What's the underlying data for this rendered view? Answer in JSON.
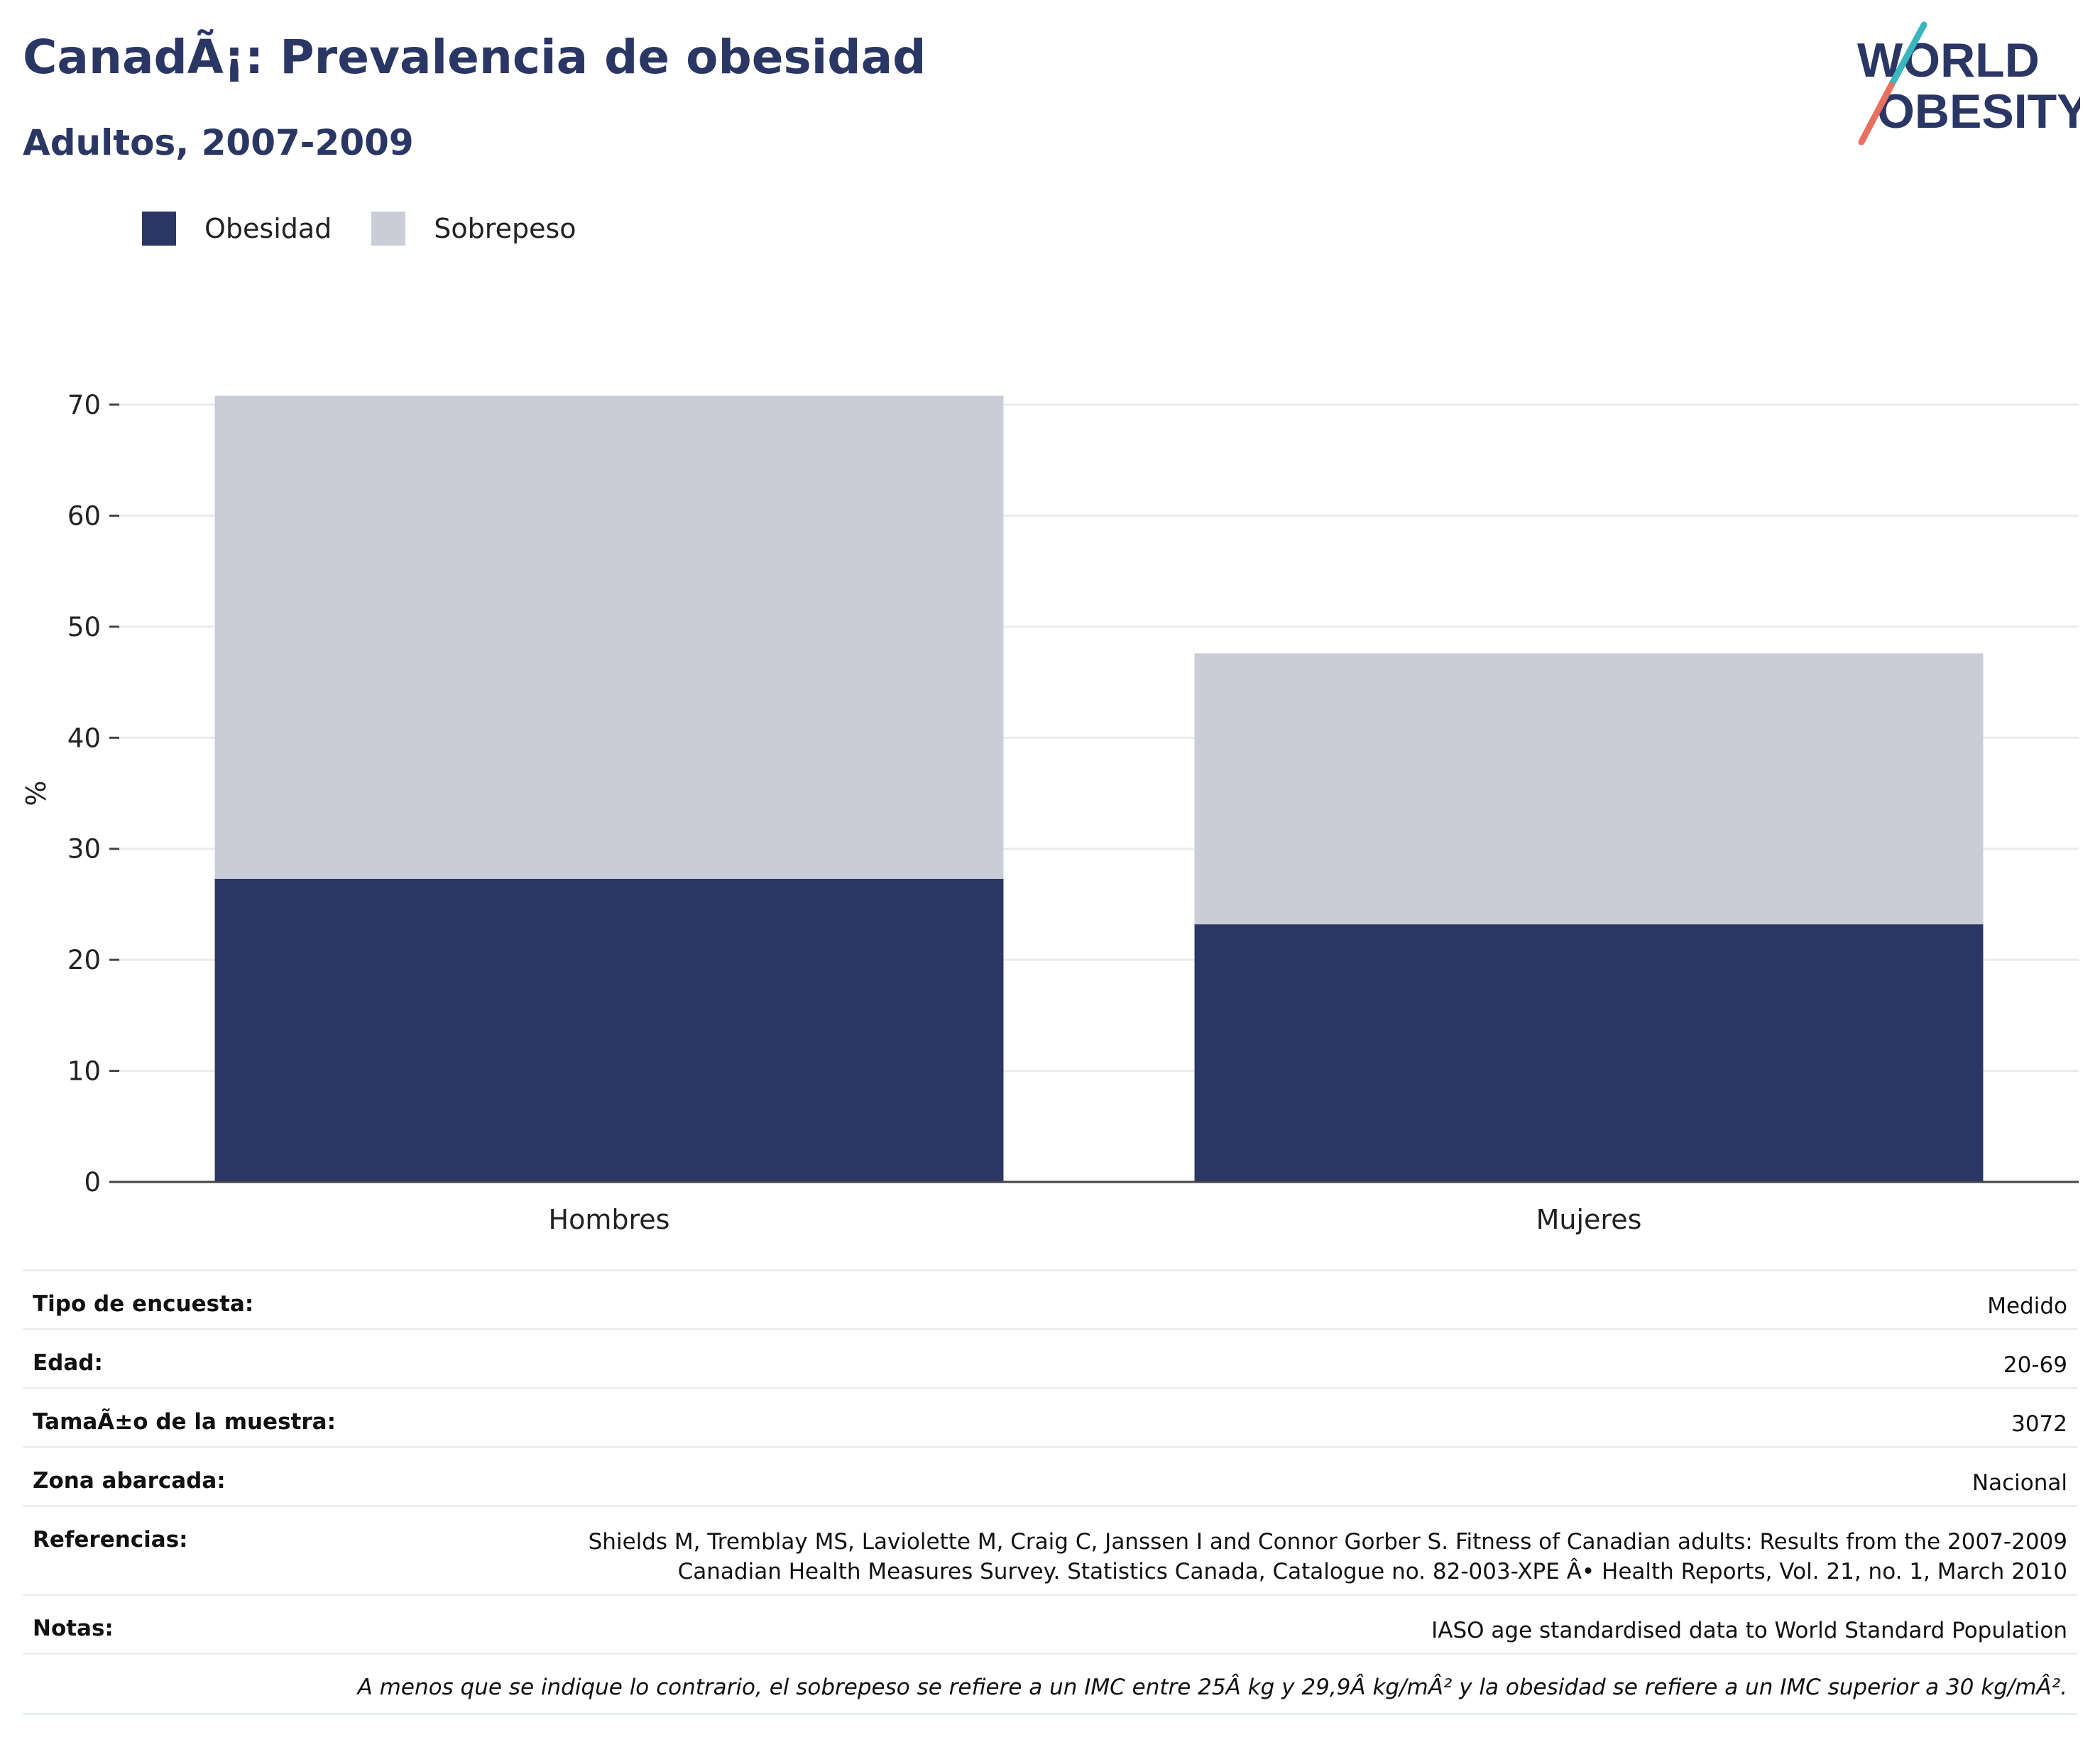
{
  "header": {
    "title": "CanadÃ¡: Prevalencia de obesidad",
    "subtitle": "Adultos, 2007-2009"
  },
  "logo": {
    "line1": "WORLD",
    "line2": "OBESITY",
    "accent_colors": [
      "#3bb6c0",
      "#e8705e"
    ]
  },
  "legend": {
    "items": [
      {
        "label": "Obesidad",
        "color": "#2a3663"
      },
      {
        "label": "Sobrepeso",
        "color": "#cacdd8"
      }
    ]
  },
  "chart_data": {
    "type": "bar",
    "stacked": true,
    "categories": [
      "Hombres",
      "Mujeres"
    ],
    "series": [
      {
        "name": "Obesidad",
        "values": [
          27.3,
          23.2
        ],
        "color": "#2a3663"
      },
      {
        "name": "Sobrepeso",
        "values": [
          43.5,
          24.4
        ],
        "color": "#cacdd8"
      }
    ],
    "ylabel": "%",
    "ylim": [
      0,
      70
    ],
    "yticks": [
      0,
      10,
      20,
      30,
      40,
      50,
      60,
      70
    ],
    "grid": true,
    "legend_position": "top-left"
  },
  "meta": {
    "rows": [
      {
        "label": "Tipo de encuesta:",
        "value": "Medido"
      },
      {
        "label": "Edad:",
        "value": "20-69"
      },
      {
        "label": "TamaÃ±o de la muestra:",
        "value": "3072"
      },
      {
        "label": "Zona abarcada:",
        "value": "Nacional"
      },
      {
        "label": "Referencias:",
        "value": "Shields M, Tremblay MS, Laviolette M, Craig C, Janssen I and Connor Gorber S. Fitness of Canadian adults: Results from the 2007-2009",
        "value2": "Canadian Health Measures Survey. Statistics Canada, Catalogue no. 82-003-XPE Â• Health Reports, Vol. 21, no. 1, March 2010"
      },
      {
        "label": "Notas:",
        "value": "IASO age standardised data to World Standard Population"
      }
    ],
    "footnote": "A menos que se indique lo contrario, el sobrepeso se refiere a un IMC entre 25Â kg y 29,9Â kg/mÂ² y la obesidad se refiere a un IMC superior a 30 kg/mÂ²."
  }
}
